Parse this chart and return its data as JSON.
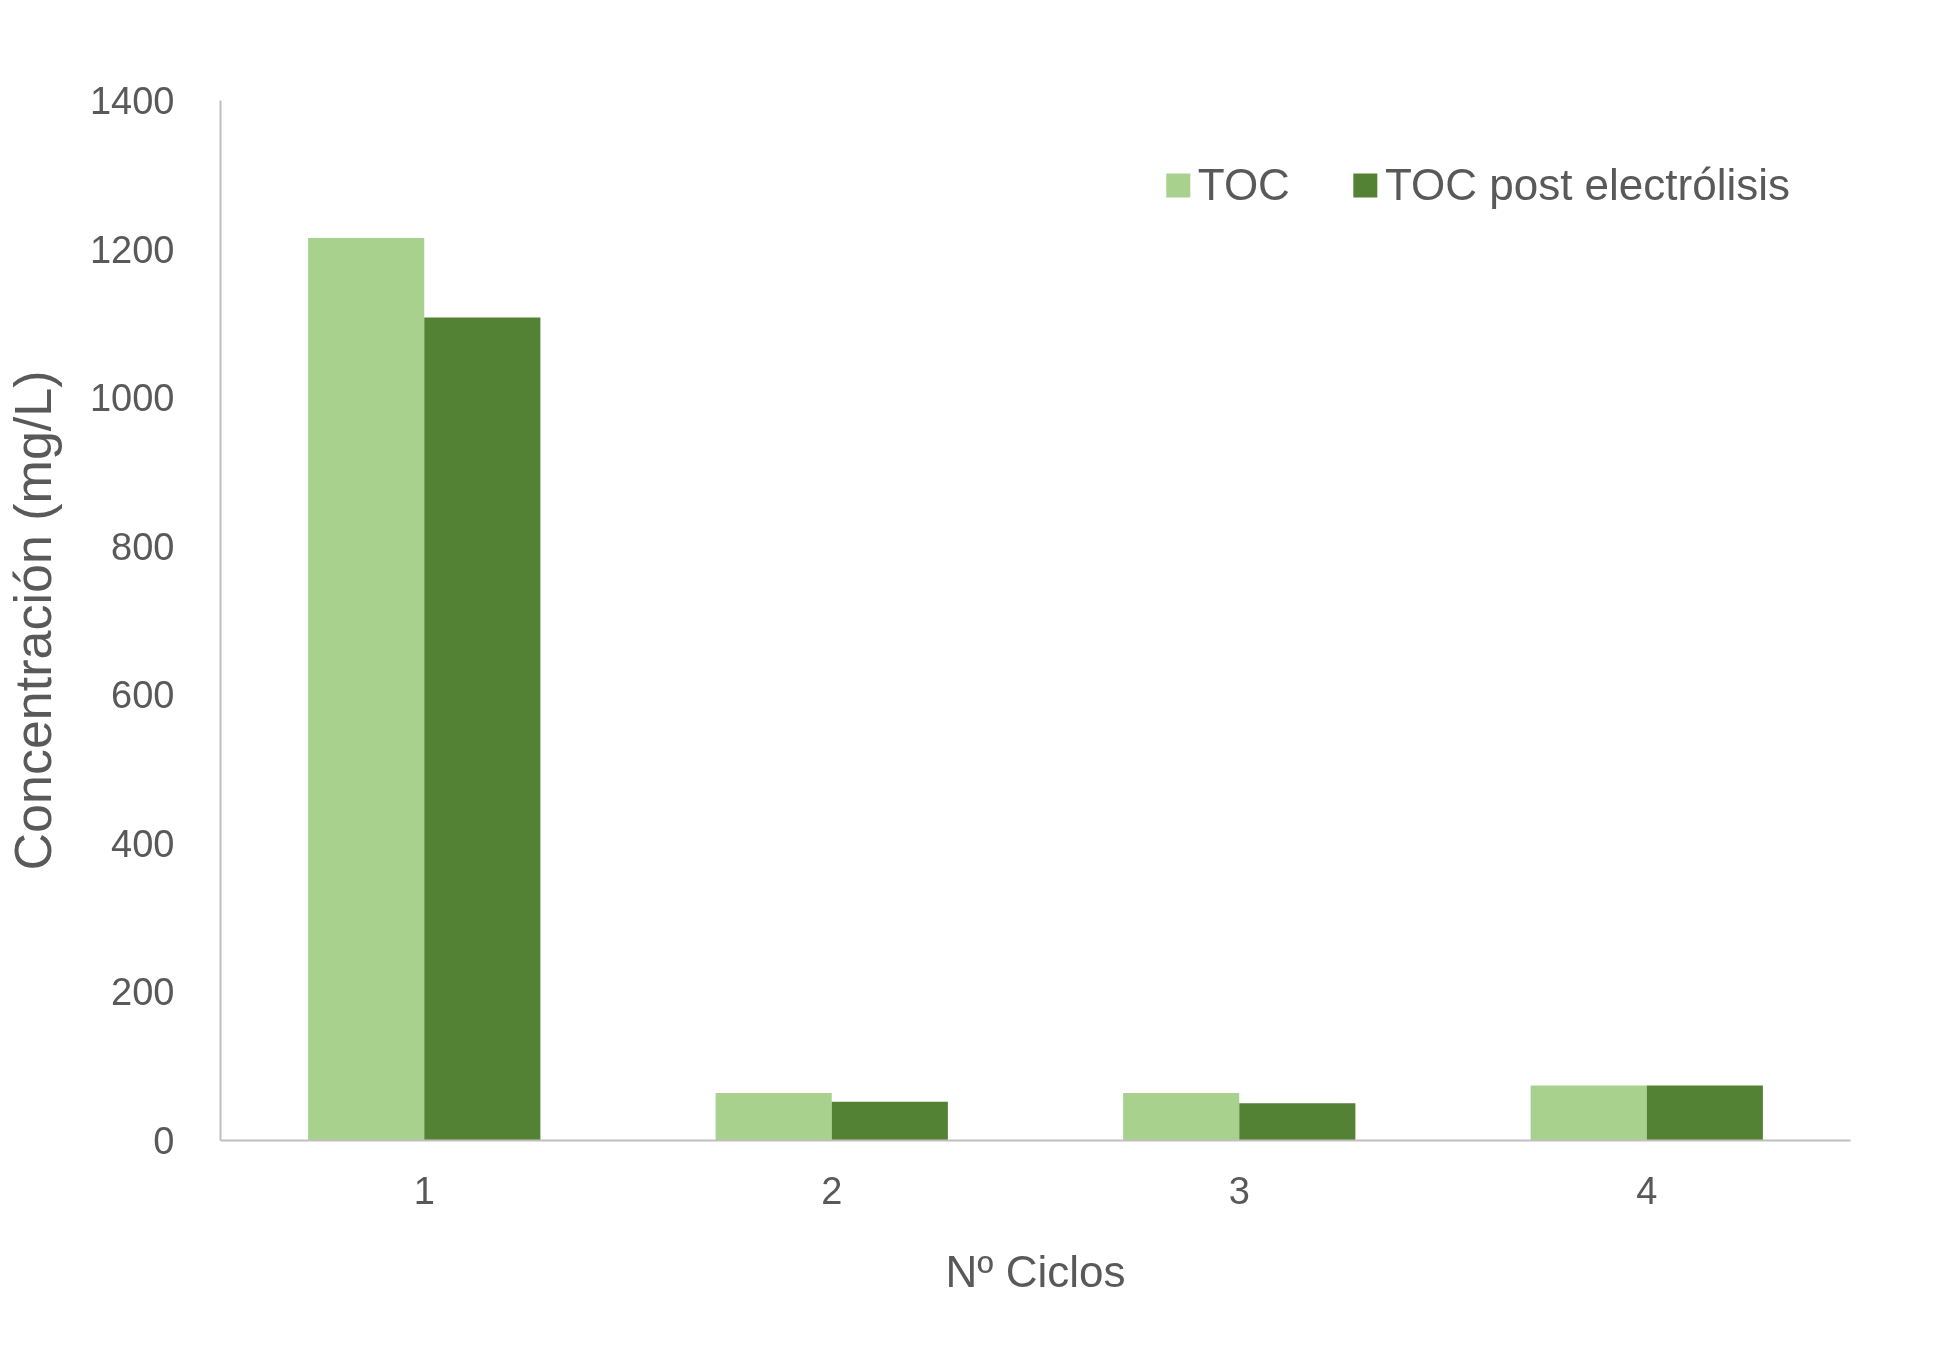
{
  "chart_data": {
    "type": "bar",
    "xlabel": "Nº Ciclos",
    "ylabel": "Concentración (mg/L)",
    "categories": [
      "1",
      "2",
      "3",
      "4"
    ],
    "series": [
      {
        "name": "TOC",
        "color": "#a9d18e",
        "values": [
          1215,
          64,
          64,
          74
        ]
      },
      {
        "name": "TOC post electrólisis",
        "color": "#548235",
        "values": [
          1108,
          52,
          50,
          74
        ]
      }
    ],
    "ylim": [
      0,
      1400
    ],
    "yticks": [
      0,
      200,
      400,
      600,
      800,
      1000,
      1200,
      1400
    ],
    "grid": false,
    "legend": "top right"
  }
}
